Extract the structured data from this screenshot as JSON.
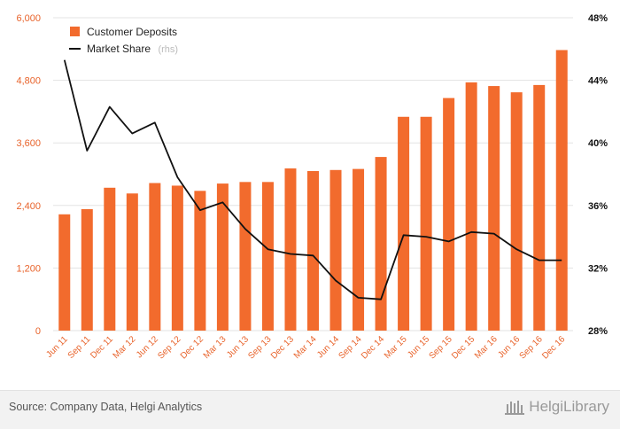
{
  "chart_data": {
    "type": "bar+line",
    "categories": [
      "Jun 11",
      "Sep 11",
      "Dec 11",
      "Mar 12",
      "Jun 12",
      "Sep 12",
      "Dec 12",
      "Mar 13",
      "Jun 13",
      "Sep 13",
      "Dec 13",
      "Mar 14",
      "Jun 14",
      "Sep 14",
      "Dec 14",
      "Mar 15",
      "Jun 15",
      "Sep 15",
      "Dec 15",
      "Mar 16",
      "Jun 16",
      "Sep 16",
      "Dec 16"
    ],
    "series": [
      {
        "name": "Customer Deposits",
        "type": "bar",
        "axis": "left",
        "color": "#f26b2d",
        "values": [
          2230,
          2330,
          2740,
          2630,
          2830,
          2780,
          2680,
          2820,
          2850,
          2850,
          3110,
          3060,
          3080,
          3100,
          3330,
          4100,
          4100,
          4460,
          4760,
          4690,
          4570,
          4710,
          5380
        ]
      },
      {
        "name": "Market Share",
        "note": "(rhs)",
        "type": "line",
        "axis": "right",
        "color": "#111111",
        "values": [
          45.3,
          39.5,
          42.3,
          40.6,
          41.3,
          37.8,
          35.7,
          36.2,
          34.5,
          33.2,
          32.9,
          32.8,
          31.2,
          30.1,
          30.0,
          34.1,
          34.0,
          33.7,
          34.3,
          34.2,
          33.2,
          32.5,
          32.5
        ]
      }
    ],
    "y_left": {
      "ylim": [
        0,
        6000
      ],
      "ticks": [
        "0",
        "1,200",
        "2,400",
        "3,600",
        "4,800",
        "6,000"
      ],
      "tick_values": [
        0,
        1200,
        2400,
        3600,
        4800,
        6000
      ]
    },
    "y_right": {
      "ylim": [
        28,
        48
      ],
      "ticks": [
        "28%",
        "32%",
        "36%",
        "40%",
        "44%",
        "48%"
      ],
      "tick_values": [
        28,
        32,
        36,
        40,
        44,
        48
      ]
    },
    "grid": true,
    "legend_position": "top-left",
    "title": "",
    "xlabel": "",
    "ylabel": ""
  },
  "footer": {
    "source": "Source: Company Data, Helgi Analytics",
    "brand": "HelgiLibrary"
  },
  "colors": {
    "bar": "#f26b2d",
    "line": "#111111",
    "grid": "#e3e3e3",
    "left_ticks": "#e8632b"
  }
}
